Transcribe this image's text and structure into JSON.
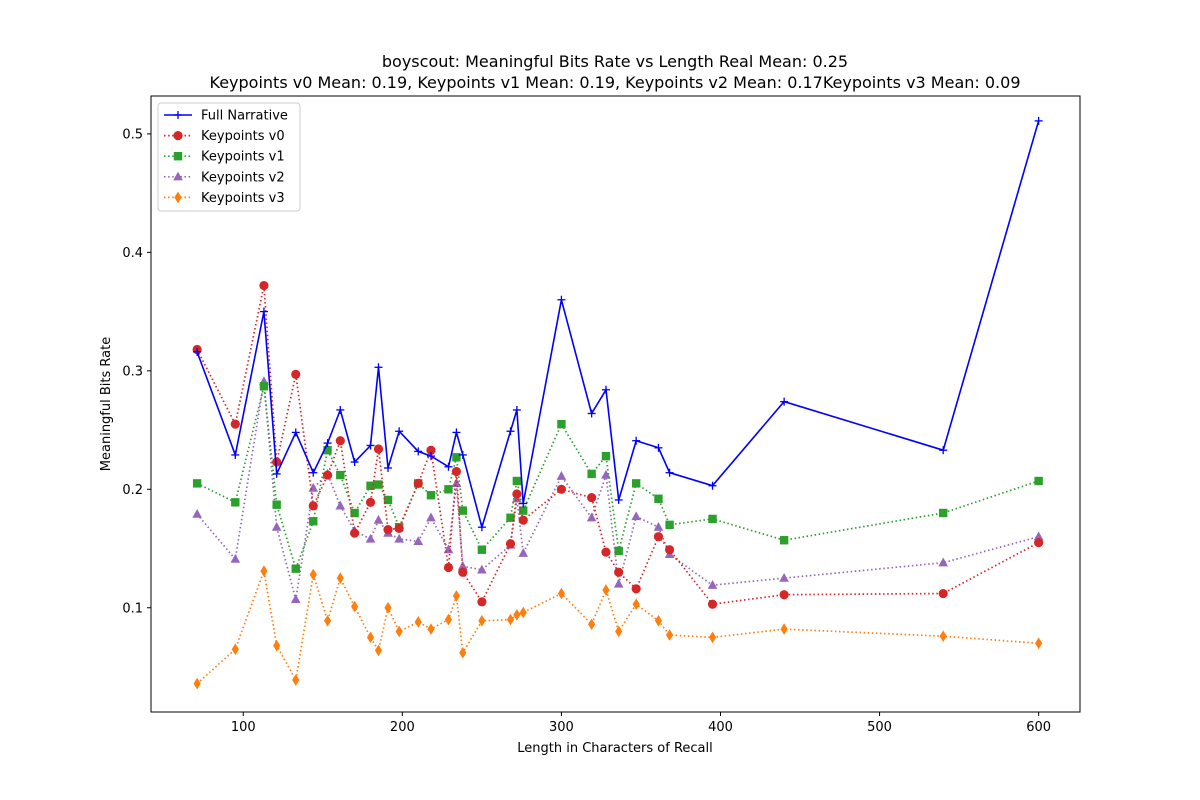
{
  "chart_data": {
    "type": "line",
    "title_line1": "boyscout: Meaningful Bits Rate vs Length Real Mean: 0.25",
    "title_line2": "Keypoints v0 Mean: 0.19, Keypoints v1 Mean: 0.19, Keypoints v2 Mean: 0.17Keypoints v3 Mean: 0.09",
    "xlabel": "Length in Characters of Recall",
    "ylabel": "Meaningful Bits Rate",
    "xlim": [
      42,
      626
    ],
    "ylim": [
      0.012,
      0.532
    ],
    "xticks": [
      100,
      200,
      300,
      400,
      500,
      600
    ],
    "yticks": [
      0.1,
      0.2,
      0.3,
      0.4,
      0.5
    ],
    "grid": false,
    "legend_position": "upper-left",
    "x": [
      71,
      95,
      113,
      121,
      133,
      144,
      153,
      161,
      170,
      180,
      185,
      191,
      198,
      210,
      218,
      229,
      234,
      238,
      250,
      268,
      272,
      276,
      300,
      319,
      328,
      336,
      347,
      361,
      368,
      395,
      440,
      540,
      600
    ],
    "series": [
      {
        "name": "Full Narrative",
        "color": "#0000ff",
        "line": "solid",
        "marker": "plus",
        "values": [
          0.316,
          0.229,
          0.35,
          0.213,
          0.248,
          0.214,
          0.239,
          0.267,
          0.223,
          0.237,
          0.303,
          0.218,
          0.249,
          0.232,
          0.228,
          0.219,
          0.248,
          0.229,
          0.168,
          0.249,
          0.267,
          0.188,
          0.36,
          0.264,
          0.284,
          0.191,
          0.241,
          0.235,
          0.214,
          0.203,
          0.274,
          0.233,
          0.511
        ]
      },
      {
        "name": "Keypoints v0",
        "color": "#d62728",
        "line": "dotted",
        "marker": "circle",
        "values": [
          0.318,
          0.255,
          0.372,
          0.223,
          0.297,
          0.186,
          0.212,
          0.241,
          0.163,
          0.189,
          0.234,
          0.166,
          0.167,
          0.205,
          0.233,
          0.134,
          0.215,
          0.13,
          0.105,
          0.154,
          0.196,
          0.174,
          0.2,
          0.193,
          0.147,
          0.13,
          0.116,
          0.16,
          0.149,
          0.103,
          0.111,
          0.112,
          0.155
        ]
      },
      {
        "name": "Keypoints v1",
        "color": "#2ca02c",
        "line": "dotted",
        "marker": "square",
        "values": [
          0.205,
          0.189,
          0.287,
          0.187,
          0.133,
          0.173,
          0.233,
          0.212,
          0.18,
          0.203,
          0.204,
          0.191,
          0.168,
          0.205,
          0.195,
          0.2,
          0.227,
          0.182,
          0.149,
          0.176,
          0.207,
          0.182,
          0.255,
          0.213,
          0.228,
          0.148,
          0.205,
          0.192,
          0.17,
          0.175,
          0.157,
          0.18,
          0.207
        ]
      },
      {
        "name": "Keypoints v2",
        "color": "#9467bd",
        "line": "dotted",
        "marker": "triangle",
        "values": [
          0.179,
          0.141,
          0.291,
          0.168,
          0.107,
          0.201,
          0.213,
          0.186,
          0.165,
          0.158,
          0.174,
          0.163,
          0.158,
          0.156,
          0.176,
          0.149,
          0.205,
          0.135,
          0.132,
          0.153,
          0.192,
          0.146,
          0.211,
          0.176,
          0.212,
          0.12,
          0.177,
          0.168,
          0.145,
          0.119,
          0.125,
          0.138,
          0.16
        ]
      },
      {
        "name": "Keypoints v3",
        "color": "#ff7f0e",
        "line": "dotted",
        "marker": "diamond",
        "values": [
          0.036,
          0.065,
          0.131,
          0.068,
          0.039,
          0.128,
          0.089,
          0.125,
          0.101,
          0.075,
          0.064,
          0.1,
          0.08,
          0.088,
          0.082,
          0.09,
          0.11,
          0.062,
          0.089,
          0.09,
          0.094,
          0.096,
          0.112,
          0.086,
          0.115,
          0.08,
          0.103,
          0.089,
          0.077,
          0.075,
          0.082,
          0.076,
          0.07
        ]
      }
    ]
  }
}
